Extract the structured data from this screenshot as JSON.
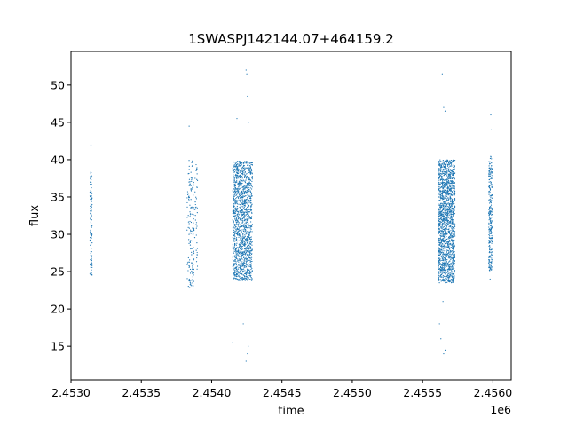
{
  "chart_data": {
    "type": "scatter",
    "title": "1SWASPJ142144.07+464159.2",
    "xlabel": "time",
    "ylabel": "flux",
    "x_offset_label": "1e6",
    "xlim": [
      2453000,
      2456130
    ],
    "ylim": [
      10.5,
      54.5
    ],
    "x_ticks": [
      2453000,
      2453500,
      2454000,
      2454500,
      2455000,
      2455500,
      2456000
    ],
    "x_tick_labels": [
      "2.4530",
      "2.4535",
      "2.4540",
      "2.4545",
      "2.4550",
      "2.4555",
      "2.4560"
    ],
    "y_ticks": [
      15,
      20,
      25,
      30,
      35,
      40,
      45,
      50
    ],
    "y_tick_labels": [
      "15",
      "20",
      "25",
      "30",
      "35",
      "40",
      "45",
      "50"
    ],
    "grid": false,
    "legend": "none",
    "marker_color": "#1f77b4",
    "clusters": [
      {
        "x_start": 2453135,
        "x_end": 2453150,
        "y_low": 24.5,
        "y_high": 38.8,
        "density": 120,
        "outliers": [
          [
            2453142,
            42.0
          ]
        ]
      },
      {
        "x_start": 2453825,
        "x_end": 2453875,
        "y_low": 22.8,
        "y_high": 40.0,
        "density": 150,
        "outliers": [
          [
            2453840,
            44.5
          ]
        ]
      },
      {
        "x_start": 2453880,
        "x_end": 2453900,
        "y_low": 25.0,
        "y_high": 39.5,
        "density": 40,
        "outliers": []
      },
      {
        "x_start": 2454150,
        "x_end": 2454290,
        "y_low": 23.8,
        "y_high": 39.8,
        "density": 1400,
        "outliers": [
          [
            2454150,
            15.5
          ],
          [
            2454180,
            45.5
          ],
          [
            2454245,
            52.0
          ],
          [
            2454250,
            51.5
          ],
          [
            2454255,
            48.5
          ],
          [
            2454245,
            13.0
          ],
          [
            2454255,
            14.0
          ],
          [
            2454260,
            15.0
          ],
          [
            2454262,
            45.0
          ],
          [
            2454225,
            18.0
          ]
        ]
      },
      {
        "x_start": 2455610,
        "x_end": 2455730,
        "y_low": 23.5,
        "y_high": 40.0,
        "density": 1600,
        "outliers": [
          [
            2455640,
            51.5
          ],
          [
            2455650,
            47.0
          ],
          [
            2455660,
            46.5
          ],
          [
            2455630,
            16.0
          ],
          [
            2455650,
            14.0
          ],
          [
            2455660,
            14.5
          ],
          [
            2455620,
            18.0
          ],
          [
            2455645,
            21.0
          ]
        ]
      },
      {
        "x_start": 2455970,
        "x_end": 2455995,
        "y_low": 25.0,
        "y_high": 40.5,
        "density": 260,
        "outliers": [
          [
            2455985,
            46.0
          ],
          [
            2455988,
            44.0
          ],
          [
            2455980,
            24.0
          ]
        ]
      }
    ]
  }
}
